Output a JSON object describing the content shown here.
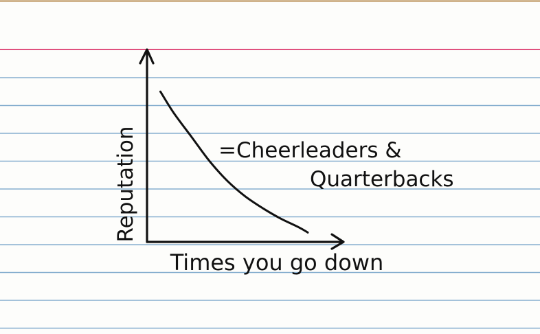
{
  "chart_data": {
    "type": "line",
    "title": "",
    "xlabel": "Times you go down",
    "ylabel": "Reputation",
    "annotation": [
      "=Cheerleaders &",
      "Quarterbacks"
    ],
    "x_ticks": [],
    "y_ticks": [],
    "grid": false,
    "xlim": [
      0,
      10
    ],
    "ylim": [
      0,
      10
    ],
    "series": [
      {
        "x": [
          0.75,
          1.5,
          2.5,
          3.5,
          4.5,
          5.5,
          6.5,
          7.5,
          8.5,
          9.0
        ],
        "y": [
          8.75,
          7.5,
          6.1,
          4.7,
          3.55,
          2.65,
          1.95,
          1.35,
          0.85,
          0.55
        ]
      }
    ]
  },
  "colors": {
    "card": "#fdfdfb",
    "rule_line": "#86aecf",
    "margin_line": "#e0507e",
    "ink": "#111111",
    "top_edge": "#b78b4f"
  }
}
